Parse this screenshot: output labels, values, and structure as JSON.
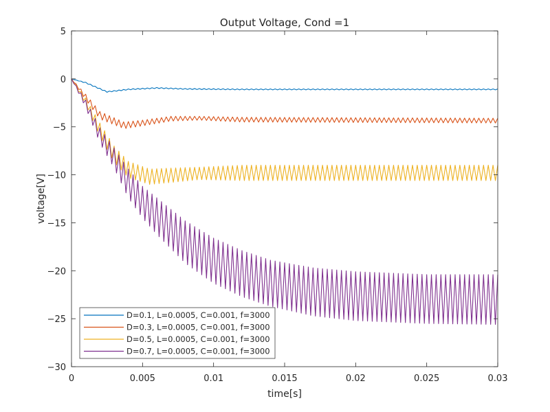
{
  "chart_data": {
    "type": "line",
    "title": "Output Voltage, Cond =1",
    "xlabel": "time[s]",
    "ylabel": "voltage[V]",
    "xlim": [
      0,
      0.03
    ],
    "ylim": [
      -30,
      5
    ],
    "x_ticks": [
      0,
      0.005,
      0.01,
      0.015,
      0.02,
      0.025,
      0.03
    ],
    "x_tick_labels": [
      "0",
      "0.005",
      "0.01",
      "0.015",
      "0.02",
      "0.025",
      "0.03"
    ],
    "y_ticks": [
      5,
      0,
      -5,
      -10,
      -15,
      -20,
      -25,
      -30
    ],
    "y_tick_labels": [
      "5",
      "0",
      "−5",
      "−10",
      "−15",
      "−20",
      "−25",
      "−30"
    ],
    "grid": false,
    "legend_position": "bottom-left",
    "switching_frequency": 3000,
    "series": [
      {
        "name": "D=0.1, L=0.0005, C=0.001, f=3000",
        "color": "#0072BD",
        "steady_min": -1.15,
        "steady_max": -1.0,
        "envelope": [
          [
            0,
            0,
            0
          ],
          [
            0.001,
            -0.45,
            -0.35
          ],
          [
            0.0025,
            -1.4,
            -1.3
          ],
          [
            0.004,
            -1.15,
            -1.05
          ],
          [
            0.006,
            -1.0,
            -0.9
          ],
          [
            0.008,
            -1.1,
            -1.0
          ],
          [
            0.012,
            -1.15,
            -1.05
          ],
          [
            0.03,
            -1.15,
            -1.05
          ]
        ]
      },
      {
        "name": "D=0.3, L=0.0005, C=0.001, f=3000",
        "color": "#D95319",
        "steady_min": -4.6,
        "steady_max": -4.1,
        "envelope": [
          [
            0,
            0,
            0
          ],
          [
            0.001,
            -2.2,
            -1.6
          ],
          [
            0.002,
            -4.2,
            -3.4
          ],
          [
            0.0037,
            -5.2,
            -4.5
          ],
          [
            0.005,
            -4.9,
            -4.3
          ],
          [
            0.007,
            -4.4,
            -3.9
          ],
          [
            0.009,
            -4.3,
            -3.9
          ],
          [
            0.012,
            -4.5,
            -4.0
          ],
          [
            0.03,
            -4.6,
            -4.1
          ]
        ]
      },
      {
        "name": "D=0.5, L=0.0005, C=0.001, f=3000",
        "color": "#EDB120",
        "steady_min": -10.6,
        "steady_max": -9.0,
        "envelope": [
          [
            0,
            0,
            0
          ],
          [
            0.001,
            -2.7,
            -2.0
          ],
          [
            0.002,
            -6.0,
            -4.6
          ],
          [
            0.003,
            -8.7,
            -7.0
          ],
          [
            0.004,
            -10.3,
            -8.6
          ],
          [
            0.0055,
            -11.0,
            -9.4
          ],
          [
            0.007,
            -10.8,
            -9.3
          ],
          [
            0.009,
            -10.5,
            -9.2
          ],
          [
            0.012,
            -10.6,
            -9.0
          ],
          [
            0.03,
            -10.6,
            -9.0
          ]
        ]
      },
      {
        "name": "D=0.7, L=0.0005, C=0.001, f=3000",
        "color": "#7E2F8E",
        "steady_min": -25.6,
        "steady_max": -20.4,
        "envelope": [
          [
            0,
            0,
            0
          ],
          [
            0.001,
            -3.0,
            -2.2
          ],
          [
            0.002,
            -6.7,
            -5.1
          ],
          [
            0.003,
            -9.3,
            -7.2
          ],
          [
            0.004,
            -12.4,
            -9.4
          ],
          [
            0.005,
            -14.5,
            -11.2
          ],
          [
            0.006,
            -16.2,
            -12.4
          ],
          [
            0.008,
            -19.2,
            -14.8
          ],
          [
            0.01,
            -21.3,
            -16.6
          ],
          [
            0.012,
            -22.7,
            -17.9
          ],
          [
            0.014,
            -23.7,
            -18.9
          ],
          [
            0.017,
            -24.7,
            -19.7
          ],
          [
            0.02,
            -25.2,
            -20.1
          ],
          [
            0.025,
            -25.5,
            -20.4
          ],
          [
            0.03,
            -25.6,
            -20.4
          ]
        ]
      }
    ]
  }
}
